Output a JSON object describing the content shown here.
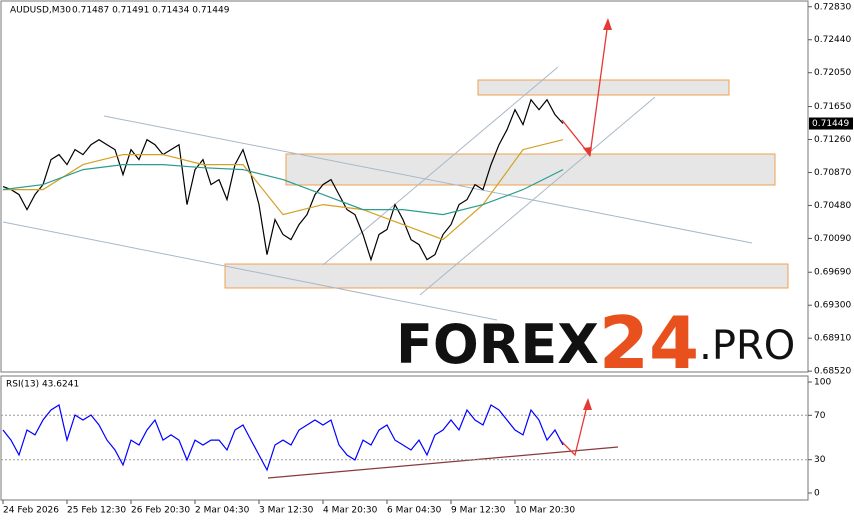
{
  "chart_data": [
    {
      "type": "line",
      "title": "AUDUSD,M30",
      "subtitle": "0.71487 0.71491 0.71434 0.71449",
      "xlim": [
        0,
        101
      ],
      "ylim": [
        0.6851,
        0.7291
      ],
      "grid": false,
      "yticks": [
        {
          "value": 0.7283,
          "label": "0.72830"
        },
        {
          "value": 0.7244,
          "label": "0.72440"
        },
        {
          "value": 0.7205,
          "label": "0.72050"
        },
        {
          "value": 0.7165,
          "label": "0.71650"
        },
        {
          "value": 0.7126,
          "label": "0.71260"
        },
        {
          "value": 0.7087,
          "label": "0.70870"
        },
        {
          "value": 0.7048,
          "label": "0.70480"
        },
        {
          "value": 0.7009,
          "label": "0.70090"
        },
        {
          "value": 0.6969,
          "label": "0.69690"
        },
        {
          "value": 0.693,
          "label": "0.69300"
        },
        {
          "value": 0.6891,
          "label": "0.68910"
        },
        {
          "value": 0.6852,
          "label": "0.68520"
        }
      ],
      "last_value": {
        "value": 0.71449,
        "label": "0.71449"
      },
      "watermark": [
        "FOREX",
        "24",
        ".PRO"
      ],
      "series": [
        {
          "color": "#000000",
          "values": [
            0.70703,
            0.70667,
            0.70608,
            0.70431,
            0.70608,
            0.70726,
            0.71022,
            0.71081,
            0.70963,
            0.7114,
            0.71081,
            0.71199,
            0.71258,
            0.71199,
            0.7114,
            0.70845,
            0.7114,
            0.71022,
            0.71258,
            0.71199,
            0.71081,
            0.7114,
            0.71199,
            0.7049,
            0.70904,
            0.71022,
            0.70726,
            0.70786,
            0.70549,
            0.70963,
            0.7114,
            0.70845,
            0.7049,
            0.69899,
            0.70313,
            0.70136,
            0.70076,
            0.70254,
            0.70372,
            0.70608,
            0.70726,
            0.70786,
            0.70608,
            0.70431,
            0.70372,
            0.70136,
            0.6984,
            0.70136,
            0.70195,
            0.7049,
            0.70313,
            0.70076,
            0.70017,
            0.6984,
            0.69899,
            0.70136,
            0.70254,
            0.7049,
            0.70549,
            0.70726,
            0.70667,
            0.70963,
            0.71199,
            0.71376,
            0.71613,
            0.71436,
            0.71731,
            0.71613,
            0.71731,
            0.71554,
            0.71449
          ]
        },
        {
          "color": "#d4a020",
          "x": [
            0,
            5,
            10,
            15,
            20,
            25,
            30,
            35,
            40,
            45,
            50,
            55,
            60,
            65,
            70
          ],
          "values": [
            0.70667,
            0.70667,
            0.70963,
            0.71081,
            0.71081,
            0.70963,
            0.70963,
            0.70372,
            0.7049,
            0.70431,
            0.70254,
            0.70076,
            0.7049,
            0.7114,
            0.71258
          ]
        },
        {
          "color": "#2a9d8f",
          "x": [
            0,
            5,
            10,
            15,
            20,
            25,
            30,
            35,
            40,
            45,
            50,
            55,
            60,
            65,
            70
          ],
          "values": [
            0.70667,
            0.70726,
            0.70904,
            0.70963,
            0.70963,
            0.70927,
            0.70904,
            0.70786,
            0.70608,
            0.70431,
            0.70431,
            0.70372,
            0.7049,
            0.70667,
            0.70904
          ]
        }
      ]
    },
    {
      "type": "line",
      "title": "RSI(13) 43.6241",
      "xlim": [
        0,
        101
      ],
      "ylim": [
        0,
        100
      ],
      "yticks": [
        0,
        30,
        70,
        100
      ],
      "grid": true,
      "xticks": [
        {
          "value": 0,
          "label": "24 Feb 2026"
        },
        {
          "value": 8,
          "label": "25 Feb 12:30"
        },
        {
          "value": 16,
          "label": "26 Feb 20:30"
        },
        {
          "value": 24,
          "label": "2 Mar 04:30"
        },
        {
          "value": 32,
          "label": "3 Mar 12:30"
        },
        {
          "value": 40,
          "label": "4 Mar 20:30"
        },
        {
          "value": 48,
          "label": "6 Mar 04:30"
        },
        {
          "value": 56,
          "label": "9 Mar 12:30"
        },
        {
          "value": 64,
          "label": "10 Mar 20:30"
        }
      ],
      "series": [
        {
          "color": "#0000ff",
          "values": [
            56.8,
            47.7,
            34.2,
            56.8,
            52.3,
            65.8,
            74.8,
            79.3,
            47.7,
            70.3,
            65.8,
            70.3,
            61.3,
            47.7,
            38.7,
            25.2,
            47.7,
            43.2,
            56.8,
            65.8,
            47.7,
            52.3,
            47.7,
            29.7,
            47.7,
            43.2,
            47.7,
            47.7,
            38.7,
            56.8,
            61.3,
            47.7,
            34.2,
            20.7,
            43.2,
            47.7,
            43.2,
            56.8,
            61.3,
            65.8,
            61.3,
            65.8,
            43.2,
            34.2,
            29.7,
            47.7,
            43.2,
            56.8,
            61.3,
            47.7,
            43.2,
            38.7,
            47.7,
            34.2,
            52.3,
            56.8,
            65.8,
            56.8,
            74.8,
            65.8,
            61.3,
            79.3,
            74.8,
            65.8,
            56.8,
            52.3,
            74.8,
            65.8,
            47.7,
            56.8,
            43.2
          ]
        }
      ]
    }
  ]
}
